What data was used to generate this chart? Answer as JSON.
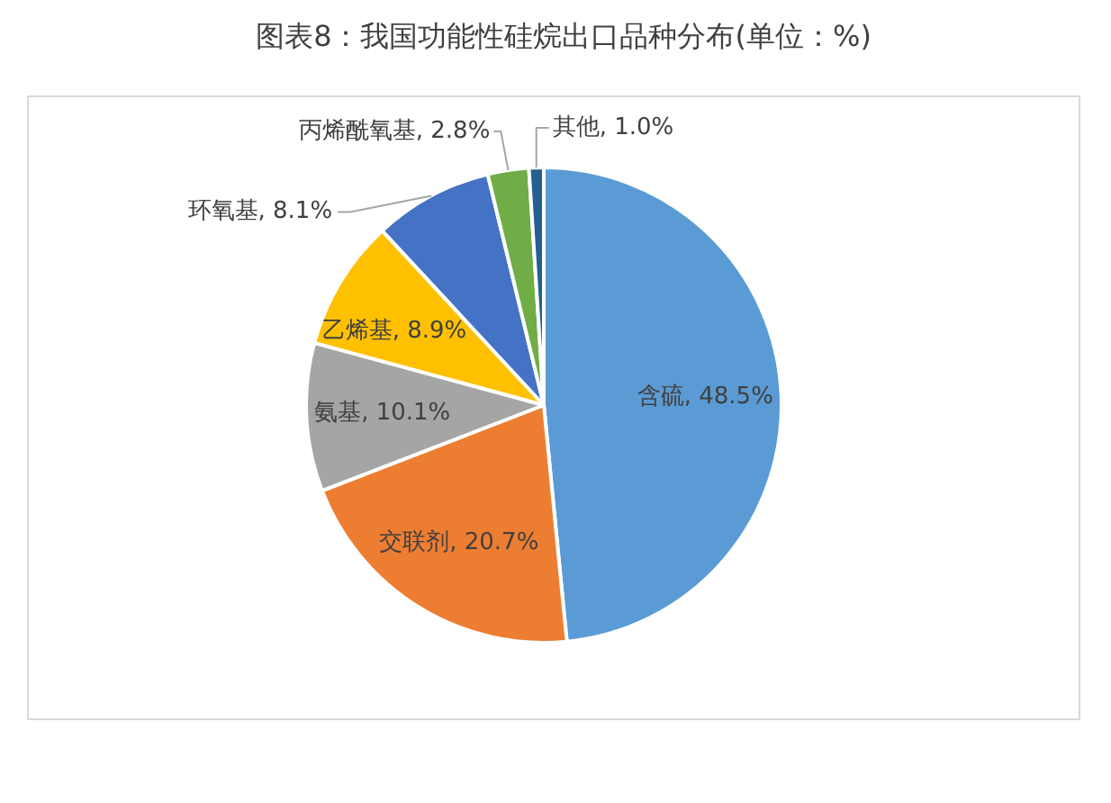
{
  "chart_data": {
    "type": "pie",
    "title": "图表8：我国功能性硅烷出口品种分布(单位：%)",
    "categories": [
      "含硫",
      "交联剂",
      "氨基",
      "乙烯基",
      "环氧基",
      "丙烯酰氧基",
      "其他"
    ],
    "values": [
      48.5,
      20.7,
      10.1,
      8.9,
      8.1,
      2.8,
      1.0
    ],
    "colors": [
      "#5b9bd5",
      "#ed7d31",
      "#a5a5a5",
      "#ffc000",
      "#4472c4",
      "#70ad47",
      "#255e91"
    ],
    "value_labels": [
      "48.5%",
      "20.7%",
      "10.1%",
      "8.9%",
      "8.1%",
      "2.8%",
      "1.0%"
    ]
  }
}
